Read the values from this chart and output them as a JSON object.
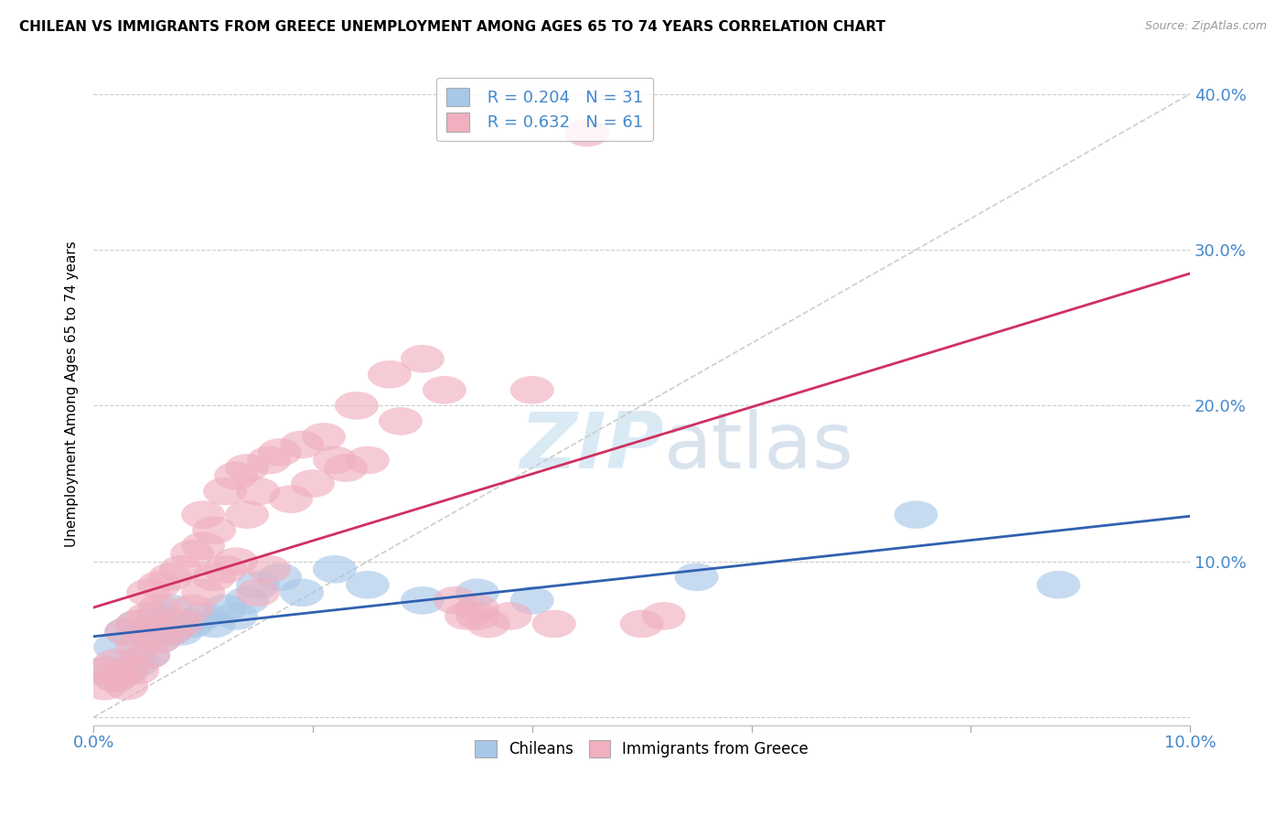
{
  "title": "CHILEAN VS IMMIGRANTS FROM GREECE UNEMPLOYMENT AMONG AGES 65 TO 74 YEARS CORRELATION CHART",
  "source": "Source: ZipAtlas.com",
  "ylabel": "Unemployment Among Ages 65 to 74 years",
  "xlim": [
    0.0,
    0.1
  ],
  "ylim": [
    -0.005,
    0.42
  ],
  "xticks": [
    0.0,
    0.02,
    0.04,
    0.06,
    0.08,
    0.1
  ],
  "yticks": [
    0.0,
    0.1,
    0.2,
    0.3,
    0.4
  ],
  "xtick_labels": [
    "0.0%",
    "",
    "",
    "",
    "",
    "10.0%"
  ],
  "ytick_labels": [
    "",
    "10.0%",
    "20.0%",
    "30.0%",
    "40.0%"
  ],
  "chileans_x": [
    0.001,
    0.002,
    0.002,
    0.003,
    0.003,
    0.004,
    0.004,
    0.005,
    0.005,
    0.006,
    0.006,
    0.007,
    0.007,
    0.008,
    0.009,
    0.01,
    0.011,
    0.012,
    0.013,
    0.014,
    0.015,
    0.017,
    0.019,
    0.022,
    0.025,
    0.03,
    0.035,
    0.04,
    0.055,
    0.075,
    0.088
  ],
  "chileans_y": [
    0.03,
    0.025,
    0.045,
    0.03,
    0.055,
    0.035,
    0.06,
    0.04,
    0.055,
    0.05,
    0.065,
    0.055,
    0.07,
    0.055,
    0.06,
    0.065,
    0.06,
    0.07,
    0.065,
    0.075,
    0.085,
    0.09,
    0.08,
    0.095,
    0.085,
    0.075,
    0.08,
    0.075,
    0.09,
    0.13,
    0.085
  ],
  "greece_x": [
    0.001,
    0.001,
    0.002,
    0.002,
    0.003,
    0.003,
    0.003,
    0.004,
    0.004,
    0.004,
    0.005,
    0.005,
    0.005,
    0.006,
    0.006,
    0.006,
    0.007,
    0.007,
    0.008,
    0.008,
    0.009,
    0.009,
    0.01,
    0.01,
    0.01,
    0.011,
    0.011,
    0.012,
    0.012,
    0.013,
    0.013,
    0.014,
    0.014,
    0.015,
    0.015,
    0.016,
    0.016,
    0.017,
    0.018,
    0.019,
    0.02,
    0.021,
    0.022,
    0.023,
    0.024,
    0.025,
    0.027,
    0.028,
    0.03,
    0.032,
    0.033,
    0.034,
    0.035,
    0.035,
    0.036,
    0.038,
    0.04,
    0.042,
    0.045,
    0.05,
    0.052
  ],
  "greece_y": [
    0.02,
    0.03,
    0.025,
    0.035,
    0.02,
    0.03,
    0.055,
    0.03,
    0.045,
    0.06,
    0.04,
    0.065,
    0.08,
    0.05,
    0.07,
    0.085,
    0.055,
    0.09,
    0.06,
    0.095,
    0.07,
    0.105,
    0.08,
    0.11,
    0.13,
    0.09,
    0.12,
    0.095,
    0.145,
    0.1,
    0.155,
    0.13,
    0.16,
    0.08,
    0.145,
    0.095,
    0.165,
    0.17,
    0.14,
    0.175,
    0.15,
    0.18,
    0.165,
    0.16,
    0.2,
    0.165,
    0.22,
    0.19,
    0.23,
    0.21,
    0.075,
    0.065,
    0.065,
    0.07,
    0.06,
    0.065,
    0.21,
    0.06,
    0.375,
    0.06,
    0.065
  ],
  "chilean_color": "#a8c8e8",
  "greece_color": "#f0b0c0",
  "chilean_line_color": "#3060b0",
  "greece_line_color": "#d03060",
  "reference_line_color": "#c8c8c8",
  "legend_r_chilean": "R = 0.204",
  "legend_n_chilean": "N = 31",
  "legend_r_greece": "R = 0.632",
  "legend_n_greece": "N = 61",
  "watermark_zip": "ZIP",
  "watermark_atlas": "atlas",
  "background_color": "#ffffff",
  "grid_color": "#cccccc"
}
